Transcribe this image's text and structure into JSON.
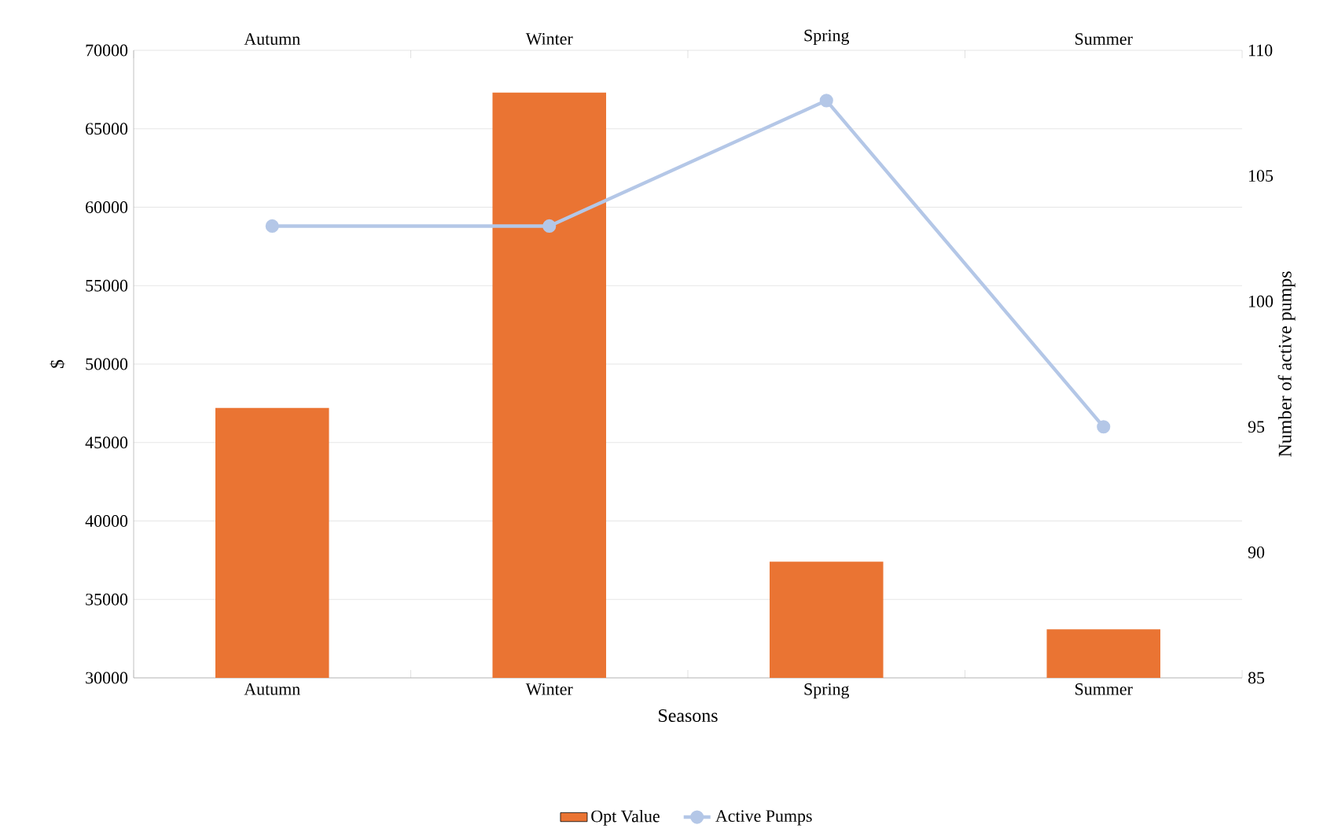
{
  "chart_data": {
    "type": "bar",
    "categories": [
      "Autumn",
      "Winter",
      "Spring",
      "Summer"
    ],
    "xlabel": "Seasons",
    "ylabel": "$",
    "y2label": "Number of active pumps",
    "series": [
      {
        "name": "Opt Value",
        "color": "#ea7433",
        "values": [
          47200,
          67300,
          37400,
          33100
        ]
      },
      {
        "name": "Active Pumps",
        "type": "line",
        "axis": "y2",
        "color": "#b4c7e7",
        "values": [
          103,
          103,
          108,
          95
        ]
      }
    ],
    "ylim": [
      30000,
      70000
    ],
    "yticks": [
      30000,
      35000,
      40000,
      45000,
      50000,
      55000,
      60000,
      65000,
      70000
    ],
    "y2lim": [
      85,
      110
    ],
    "y2ticks": [
      85,
      90,
      95,
      100,
      105,
      110
    ],
    "grid": "y",
    "legend": "bottom",
    "marker": "circle",
    "line_style": "solid"
  }
}
